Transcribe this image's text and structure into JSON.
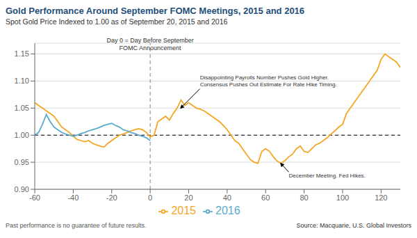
{
  "chart_data": {
    "type": "line",
    "title": "Gold Performance Around September FOMC Meetings, 2015 and 2016",
    "title_color": "#1f4e79",
    "subtitle": "Spot Gold Price Indexed to 1.00 as of September 20, 2015 and 2016",
    "footer_left": "Past performance is no guarantee of future results.",
    "footer_right": "Source: Macquarie, U.S. Global Investors",
    "xlim": [
      -60,
      130
    ],
    "ylim": [
      0.9,
      1.17
    ],
    "xticks": [
      -60,
      -40,
      -20,
      0,
      20,
      40,
      60,
      80,
      100,
      120
    ],
    "yticks": [
      {
        "value": 0.9,
        "label": "0.90"
      },
      {
        "value": 0.95,
        "label": "0.95"
      },
      {
        "value": 1.0,
        "label": "1.00"
      },
      {
        "value": 1.05,
        "label": "1.05"
      },
      {
        "value": 1.1,
        "label": "1.10"
      },
      {
        "value": 1.15,
        "label": "1.15"
      }
    ],
    "grid": true,
    "legend": "bottom",
    "x": [
      -60,
      -58,
      -56,
      -54,
      -52,
      -50,
      -48,
      -46,
      -44,
      -42,
      -40,
      -38,
      -36,
      -34,
      -32,
      -30,
      -28,
      -26,
      -24,
      -22,
      -20,
      -18,
      -16,
      -14,
      -12,
      -10,
      -8,
      -6,
      -4,
      -2,
      0,
      2,
      4,
      6,
      8,
      10,
      12,
      14,
      16,
      18,
      20,
      22,
      24,
      26,
      28,
      30,
      32,
      34,
      36,
      38,
      40,
      42,
      44,
      46,
      48,
      50,
      52,
      54,
      56,
      58,
      60,
      62,
      64,
      66,
      68,
      70,
      72,
      74,
      76,
      78,
      80,
      82,
      84,
      86,
      88,
      90,
      92,
      94,
      96,
      98,
      100,
      102,
      104,
      106,
      108,
      110,
      112,
      114,
      116,
      118,
      120,
      122,
      124,
      126,
      128,
      130
    ],
    "series": [
      {
        "name": "2015",
        "color": "#f5a623",
        "values": [
          1.06,
          1.055,
          1.05,
          1.045,
          1.04,
          1.035,
          1.025,
          1.015,
          1.01,
          1.005,
          0.998,
          0.992,
          0.99,
          0.988,
          0.99,
          0.985,
          0.982,
          0.98,
          0.978,
          0.985,
          0.99,
          0.995,
          1.0,
          1.002,
          1.005,
          1.008,
          1.01,
          1.012,
          1.01,
          1.005,
          0.997,
          1.0,
          1.025,
          1.03,
          1.035,
          1.028,
          1.04,
          1.05,
          1.065,
          1.055,
          1.06,
          1.055,
          1.05,
          1.048,
          1.045,
          1.04,
          1.035,
          1.03,
          1.025,
          1.018,
          1.01,
          1.0,
          0.99,
          0.985,
          0.975,
          0.965,
          0.955,
          0.95,
          0.948,
          0.97,
          0.975,
          0.97,
          0.96,
          0.952,
          0.948,
          0.953,
          0.96,
          0.965,
          0.975,
          0.98,
          0.97,
          0.968,
          0.975,
          0.982,
          0.985,
          0.99,
          0.995,
          1.002,
          1.008,
          1.015,
          1.02,
          1.04,
          1.05,
          1.06,
          1.07,
          1.08,
          1.09,
          1.1,
          1.11,
          1.12,
          1.14,
          1.15,
          1.145,
          1.14,
          1.135,
          1.125
        ]
      },
      {
        "name": "2016",
        "color": "#5aabcb",
        "values": [
          1.0,
          1.005,
          1.02,
          1.038,
          1.025,
          1.015,
          1.01,
          1.005,
          1.002,
          1.0,
          0.998,
          1.0,
          1.003,
          1.005,
          1.008,
          1.01,
          1.012,
          1.015,
          1.018,
          1.02,
          1.022,
          1.018,
          1.015,
          1.01,
          1.008,
          1.005,
          1.003,
          1.0,
          0.998,
          0.995,
          0.99,
          null,
          null,
          null,
          null,
          null,
          null,
          null,
          null,
          null,
          null,
          null,
          null,
          null,
          null,
          null,
          null,
          null,
          null,
          null,
          null,
          null,
          null,
          null,
          null,
          null,
          null,
          null,
          null,
          null,
          null,
          null,
          null,
          null,
          null,
          null,
          null,
          null,
          null,
          null,
          null,
          null,
          null,
          null,
          null,
          null,
          null,
          null,
          null,
          null,
          null,
          null,
          null,
          null,
          null,
          null,
          null,
          null,
          null,
          null,
          null,
          null,
          null,
          null,
          null,
          null
        ]
      }
    ],
    "reference_lines": [
      {
        "axis": "y",
        "value": 1.0,
        "color": "black",
        "line_style": "dashed"
      },
      {
        "axis": "x",
        "value": 0,
        "color": "gray",
        "line_style": "dashed"
      }
    ],
    "annotations": [
      {
        "text": "Day 0 = Day Before September\nFOMC Announcement",
        "x": 0,
        "y": 1.155
      },
      {
        "text": "Disappointing Payrolls Number Pushes Gold Higher.\nConsensus Pushes Out Estimate For Rate Hike Timing.",
        "x": 15,
        "y": 1.047,
        "arrow": true
      },
      {
        "text": "December Meeting. Fed Hikes.",
        "x": 67,
        "y": 0.951,
        "arrow": true
      }
    ]
  }
}
